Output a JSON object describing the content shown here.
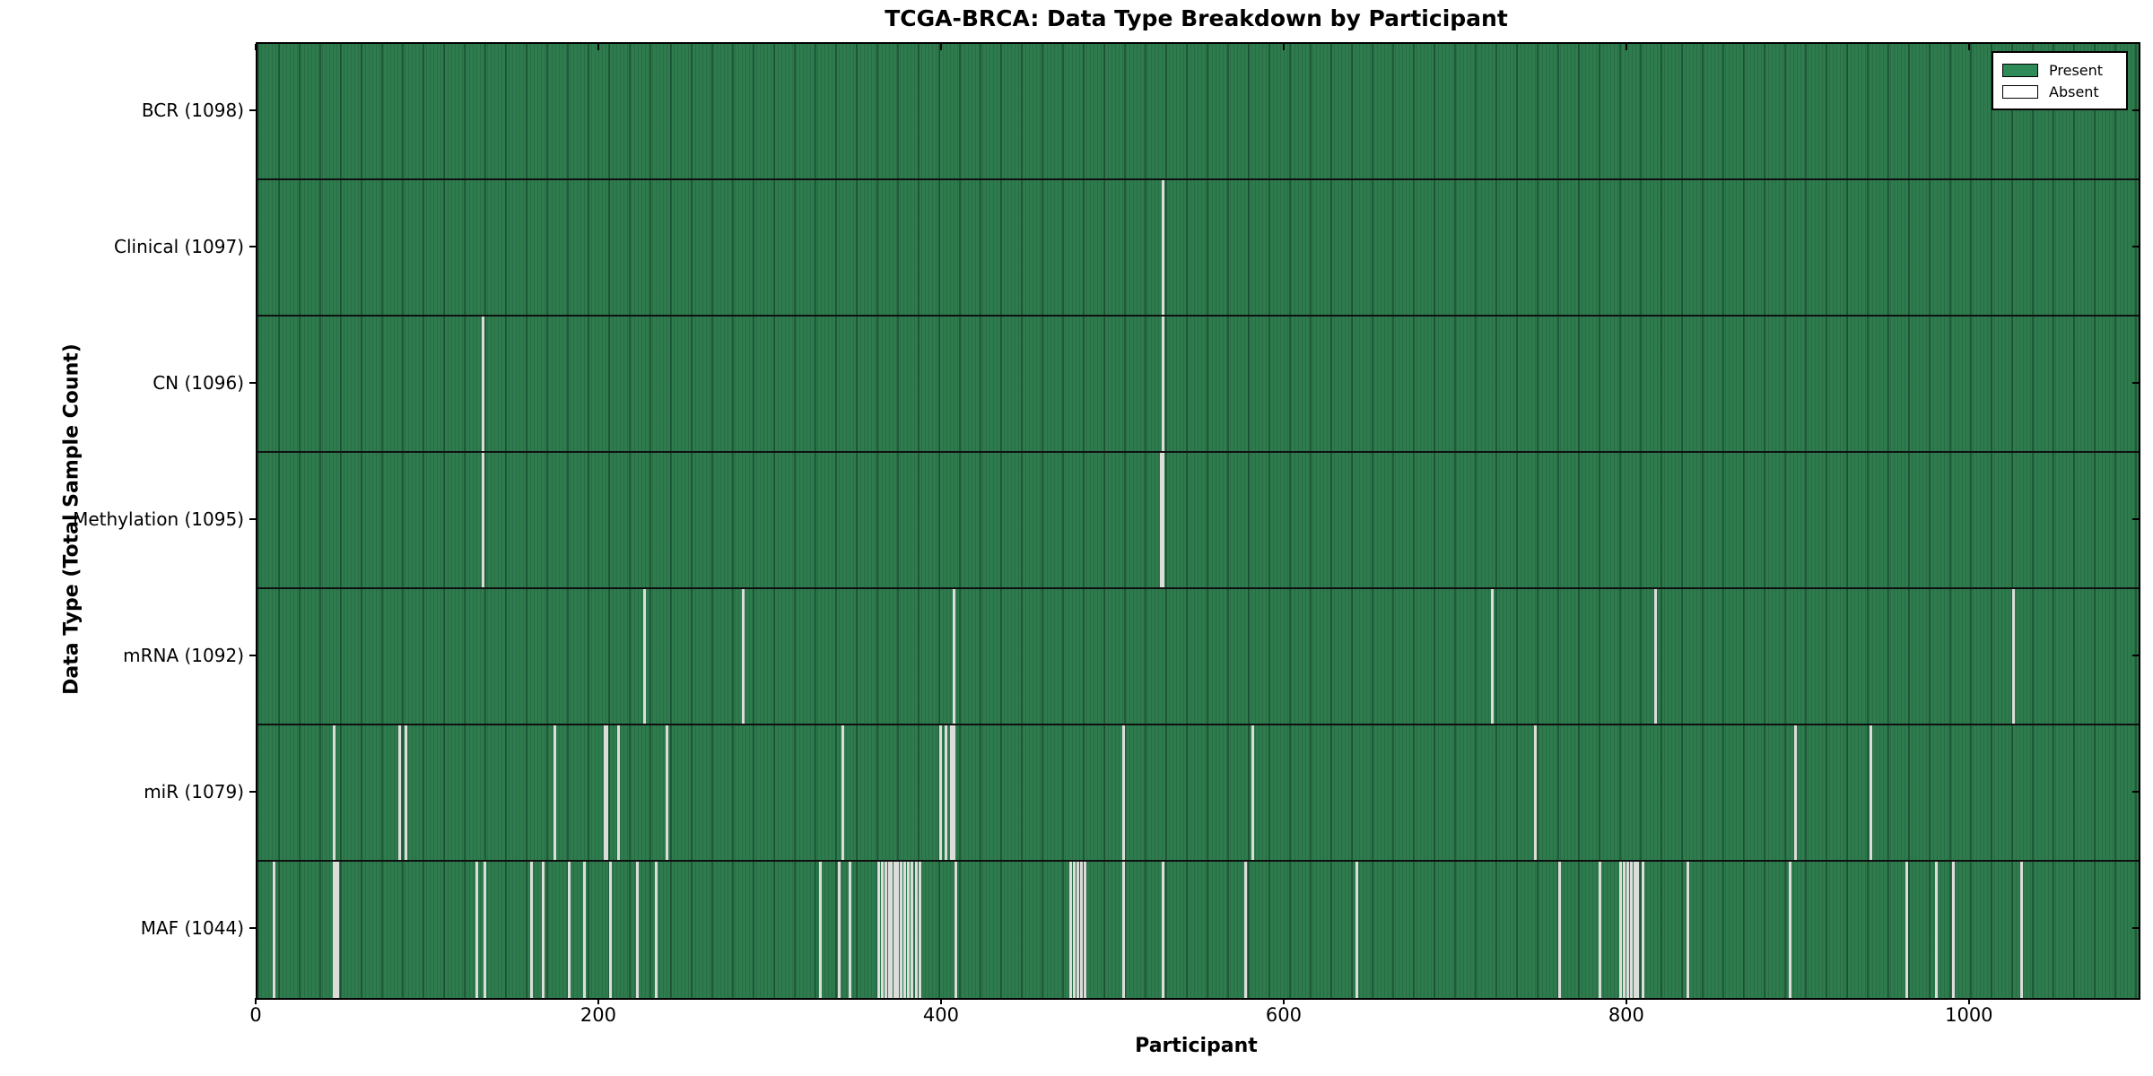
{
  "chart_data": {
    "type": "heatmap",
    "title": "TCGA-BRCA: Data Type Breakdown by Participant",
    "xlabel": "Participant",
    "ylabel": "Data Type (Total Sample Count)",
    "x_range": [
      0,
      1098
    ],
    "x_ticks": [
      0,
      200,
      400,
      600,
      800,
      1000
    ],
    "n_participants": 1098,
    "grid": false,
    "legend_position": "upper-right",
    "legend": [
      {
        "label": "Present",
        "color": "#2E8B57"
      },
      {
        "label": "Absent",
        "color": "#FFFFFF"
      }
    ],
    "colors": {
      "present": "#2E8B57",
      "absent": "#FFFFFF",
      "absent_line_render": "#DCDCDA",
      "row_divider": "#101010",
      "plot_border": "#000000"
    },
    "rows": [
      {
        "data_type": "BCR",
        "label": "BCR (1098)",
        "present_count": 1098,
        "absent_count": 0,
        "absent_participants": []
      },
      {
        "data_type": "Clinical",
        "label": "Clinical (1097)",
        "present_count": 1097,
        "absent_count": 1,
        "absent_participants": [
          528
        ]
      },
      {
        "data_type": "CN",
        "label": "CN (1096)",
        "present_count": 1096,
        "absent_count": 2,
        "absent_participants": [
          131,
          528
        ]
      },
      {
        "data_type": "Methylation",
        "label": "Methylation (1095)",
        "present_count": 1095,
        "absent_count": 3,
        "absent_participants": [
          131,
          527,
          528
        ]
      },
      {
        "data_type": "mRNA",
        "label": "mRNA (1092)",
        "present_count": 1092,
        "absent_count": 6,
        "absent_participants": [
          225,
          283,
          406,
          720,
          815,
          1024
        ]
      },
      {
        "data_type": "miR",
        "label": "miR (1079)",
        "present_count": 1079,
        "absent_count": 19,
        "absent_participants": [
          44,
          82,
          86,
          173,
          202,
          203,
          210,
          238,
          341,
          398,
          401,
          404,
          405,
          406,
          505,
          580,
          745,
          897,
          941
        ]
      },
      {
        "data_type": "MAF",
        "label": "MAF (1044)",
        "present_count": 1044,
        "absent_count": 54,
        "absent_participants": [
          9,
          44,
          45,
          46,
          127,
          132,
          159,
          166,
          181,
          190,
          205,
          221,
          232,
          328,
          339,
          345,
          362,
          364,
          366,
          368,
          369,
          371,
          373,
          375,
          377,
          379,
          381,
          384,
          386,
          407,
          474,
          476,
          478,
          480,
          482,
          505,
          528,
          576,
          641,
          759,
          783,
          795,
          797,
          799,
          801,
          803,
          805,
          808,
          834,
          894,
          962,
          979,
          989,
          1029
        ]
      }
    ]
  }
}
